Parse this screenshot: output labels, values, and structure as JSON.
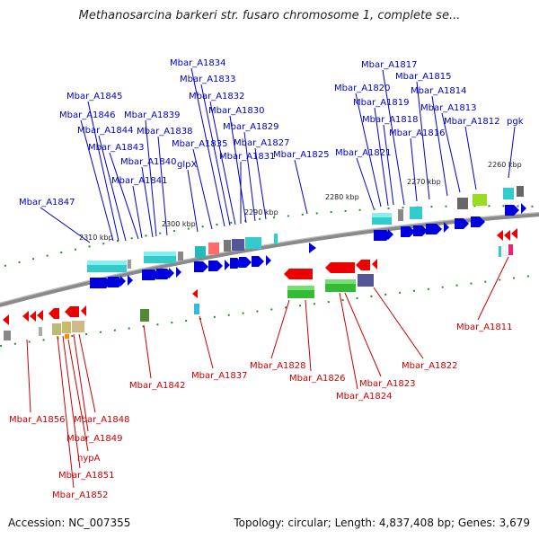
{
  "title": "Methanosarcina barkeri str. fusaro chromosome 1, complete se...",
  "accession_line": "Accession: NC_007355",
  "summary_line": "Topology: circular; Length: 4,837,408 bp; Genes: 3,679",
  "colors": {
    "top_labels": "#0000cc",
    "bottom_labels": "#cc0000",
    "backbone": "#888888",
    "forward_arrow": "#0000dd",
    "reverse_arrow": "#ee0000"
  },
  "kbp_ticks": [
    "2310 kbp",
    "2300 kbp",
    "2290 kbp",
    "2280 kbp",
    "2270 kbp",
    "2260 kbp"
  ],
  "top_genes": [
    "Mbar_A1834",
    "Mbar_A1833",
    "Mbar_A1832",
    "Mbar_A1830",
    "Mbar_A1829",
    "Mbar_A1827",
    "Mbar_A1831",
    "Mbar_A1825",
    "Mbar_A1845",
    "Mbar_A1846",
    "Mbar_A1844",
    "Mbar_A1843",
    "Mbar_A1839",
    "Mbar_A1838",
    "Mbar_A1840",
    "Mbar_A1841",
    "Mbar_A1835",
    "glpX",
    "Mbar_A1847",
    "Mbar_A1817",
    "Mbar_A1815",
    "Mbar_A1820",
    "Mbar_A1814",
    "Mbar_A1819",
    "Mbar_A1813",
    "Mbar_A1818",
    "Mbar_A1812",
    "Mbar_A1816",
    "pgk",
    "Mbar_A1821"
  ],
  "bottom_genes": [
    "Mbar_A1811",
    "Mbar_A1842",
    "Mbar_A1837",
    "Mbar_A1828",
    "Mbar_A1826",
    "Mbar_A1822",
    "Mbar_A1823",
    "Mbar_A1824",
    "Mbar_A1856",
    "Mbar_A1848",
    "Mbar_A1849",
    "hypA",
    "Mbar_A1851",
    "Mbar_A1852"
  ]
}
